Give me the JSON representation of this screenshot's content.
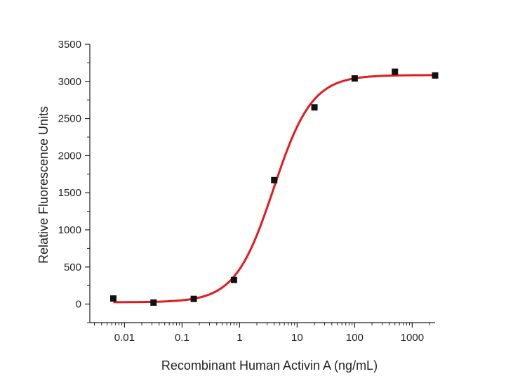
{
  "chart_data": {
    "type": "scatter",
    "title": "",
    "xlabel": "Recombinant Human Activin A (ng/mL)",
    "ylabel": "Relative Fluorescence Units",
    "x_scale": "log",
    "xlim": [
      0.0025,
      2500
    ],
    "ylim": [
      -250,
      3500
    ],
    "x_ticks": [
      0.01,
      0.1,
      1,
      10,
      100,
      1000
    ],
    "x_tick_labels": [
      "0.01",
      "0.1",
      "1",
      "10",
      "100",
      "1000"
    ],
    "y_ticks": [
      0,
      500,
      1000,
      1500,
      2000,
      2500,
      3000,
      3500
    ],
    "y_tick_labels": [
      "0",
      "500",
      "1000",
      "1500",
      "2000",
      "2500",
      "3000",
      "3500"
    ],
    "grid": false,
    "legend": "none",
    "colors": {
      "points": "#111111",
      "fit": "#e41a1c",
      "axis": "#222222"
    },
    "points": {
      "x": [
        0.0064,
        0.032,
        0.16,
        0.8,
        4,
        20,
        100,
        500,
        2500
      ],
      "y": [
        75,
        20,
        70,
        325,
        1670,
        2650,
        3040,
        3130,
        3080
      ]
    },
    "fit": {
      "model": "4PL",
      "bottom": 25,
      "top": 3085,
      "ec50": 3.9,
      "hill": 1.3
    }
  }
}
